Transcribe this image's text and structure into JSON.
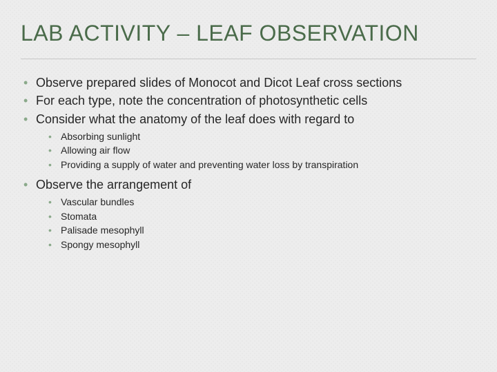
{
  "colors": {
    "title": "#4a6b4a",
    "bullet": "#8aa98a",
    "text": "#262626",
    "background": "#ededed",
    "divider": "#c8c8c8"
  },
  "typography": {
    "title_fontsize": 32,
    "l1_fontsize": 18,
    "l2_fontsize": 14,
    "font_family": "Arial"
  },
  "title": "LAB ACTIVITY – LEAF OBSERVATION",
  "bullets": {
    "b1": "Observe prepared slides of Monocot and Dicot Leaf cross sections",
    "b2": "For each type, note the concentration of photosynthetic cells",
    "b3": "Consider what the anatomy of the leaf does with regard to",
    "b3_sub": {
      "s1": "Absorbing sunlight",
      "s2": "Allowing air flow",
      "s3": "Providing a supply of water and preventing water loss by transpiration"
    },
    "b4": "Observe the arrangement of",
    "b4_sub": {
      "s1": "Vascular bundles",
      "s2": "Stomata",
      "s3": "Palisade mesophyll",
      "s4": "Spongy mesophyll"
    }
  }
}
